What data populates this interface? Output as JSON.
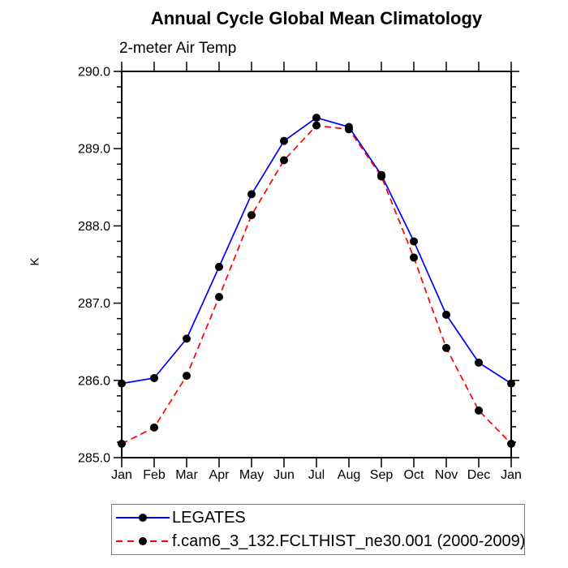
{
  "chart_data": {
    "type": "line",
    "title": "Annual Cycle Global Mean Climatology",
    "subtitle": "2-meter Air Temp",
    "xlabel": "",
    "ylabel": "K",
    "categories": [
      "Jan",
      "Feb",
      "Mar",
      "Apr",
      "May",
      "Jun",
      "Jul",
      "Aug",
      "Sep",
      "Oct",
      "Nov",
      "Dec",
      "Jan"
    ],
    "ylim": [
      285.0,
      290.0
    ],
    "yticks": [
      "285.0",
      "286.0",
      "287.0",
      "288.0",
      "289.0",
      "290.0"
    ],
    "y_minor_step": 0.2,
    "grid": false,
    "legend_position": "bottom",
    "axis_color": "#000000",
    "marker_color": "#000000",
    "series": [
      {
        "name": "LEGATES",
        "color": "#0000ff",
        "line_style": "solid",
        "marker": "filled-circle",
        "values": [
          285.96,
          286.03,
          286.54,
          287.47,
          288.41,
          289.1,
          289.4,
          289.28,
          288.66,
          287.8,
          286.85,
          286.23,
          285.96
        ]
      },
      {
        "name": "f.cam6_3_132.FCLTHIST_ne30.001 (2000-2009)",
        "color": "#ff0000",
        "line_style": "dashed",
        "marker": "filled-circle",
        "values": [
          285.18,
          285.39,
          286.06,
          287.08,
          288.14,
          288.85,
          289.3,
          289.25,
          288.64,
          287.59,
          286.42,
          285.61,
          285.18
        ]
      }
    ]
  }
}
